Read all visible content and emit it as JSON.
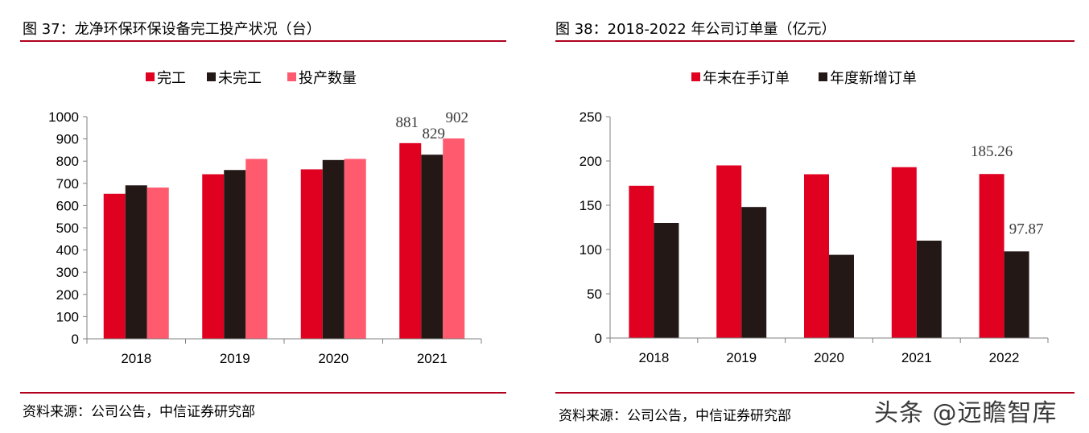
{
  "charts": [
    {
      "panel_title": "图 37：龙净环保环保设备完工投产状况（台）",
      "source": "资料来源：公司公告，中信证券研究部",
      "chart_data": {
        "type": "bar",
        "categories": [
          "2018",
          "2019",
          "2020",
          "2021"
        ],
        "series": [
          {
            "name": "完工",
            "color": "#e00020",
            "values": [
              653,
              741,
              763,
              881
            ]
          },
          {
            "name": "未完工",
            "color": "#231815",
            "values": [
              691,
              760,
              805,
              829
            ]
          },
          {
            "name": "投产数量",
            "color": "#ff5a6e",
            "values": [
              681,
              810,
              810,
              902
            ]
          }
        ],
        "yticks": [
          "0",
          "100",
          "200",
          "300",
          "400",
          "500",
          "600",
          "700",
          "800",
          "900",
          "1000"
        ],
        "ylim": [
          0,
          1000
        ],
        "data_labels": [
          {
            "category_index": 3,
            "series_index": 0,
            "text": "881"
          },
          {
            "category_index": 3,
            "series_index": 1,
            "text": "829"
          },
          {
            "category_index": 3,
            "series_index": 2,
            "text": "902"
          }
        ],
        "legend_position": "top-center",
        "grid": false
      }
    },
    {
      "panel_title": "图 38：2018-2022 年公司订单量（亿元）",
      "source": "资料来源：公司公告，中信证券研究部",
      "watermark": "头条 @远瞻智库",
      "chart_data": {
        "type": "bar",
        "categories": [
          "2018",
          "2019",
          "2020",
          "2021",
          "2022"
        ],
        "series": [
          {
            "name": "年末在手订单",
            "color": "#e00020",
            "values": [
              172,
              195,
              185,
              193,
              185.26
            ]
          },
          {
            "name": "年度新增订单",
            "color": "#231815",
            "values": [
              130,
              148,
              94,
              110,
              97.87
            ]
          }
        ],
        "yticks": [
          "0",
          "50",
          "100",
          "150",
          "200",
          "250"
        ],
        "ylim": [
          0,
          250
        ],
        "data_labels": [
          {
            "category_index": 4,
            "series_index": 0,
            "text": "185.26"
          },
          {
            "category_index": 4,
            "series_index": 1,
            "text": "97.87"
          }
        ],
        "legend_position": "top-center",
        "grid": false
      }
    }
  ]
}
